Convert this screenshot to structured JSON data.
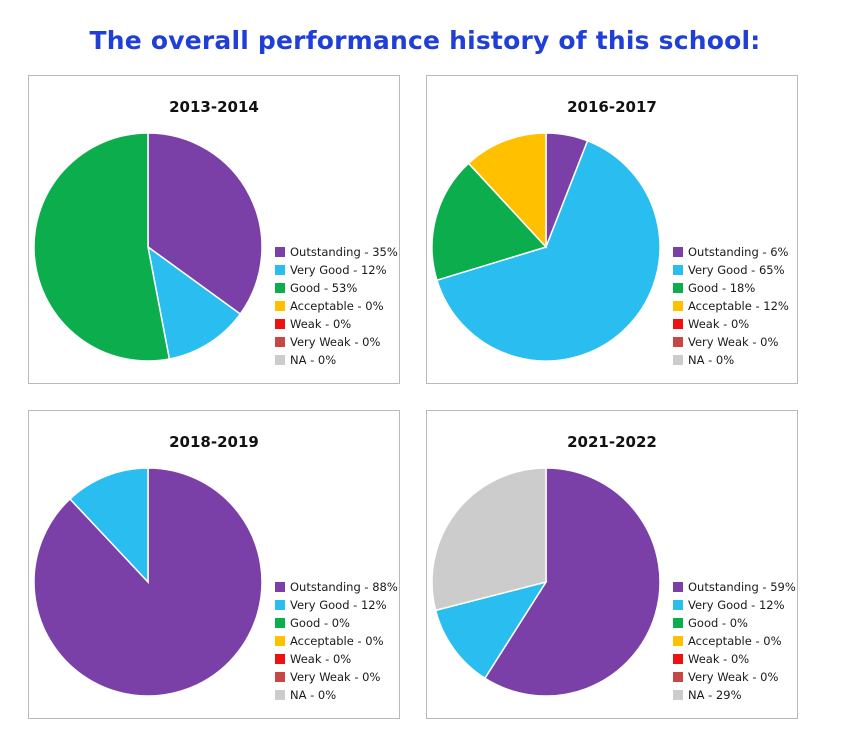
{
  "page_title": "The overall performance history of this school:",
  "colors": {
    "Outstanding": "#7b3fa8",
    "Very Good": "#29bdf0",
    "Good": "#0bad4d",
    "Acceptable": "#ffc000",
    "Weak": "#ee1111",
    "Very Weak": "#c94646",
    "NA": "#cccccc"
  },
  "chart_data": [
    {
      "type": "pie",
      "title": "2013-2014",
      "categories": [
        "Outstanding",
        "Very Good",
        "Good",
        "Acceptable",
        "Weak",
        "Very Weak",
        "NA"
      ],
      "values": [
        35,
        12,
        53,
        0,
        0,
        0,
        0
      ],
      "legend_labels": [
        "Outstanding - 35%",
        "Very Good - 12%",
        "Good - 53%",
        "Acceptable - 0%",
        "Weak - 0%",
        "Very Weak - 0%",
        "NA - 0%"
      ],
      "legend": "right"
    },
    {
      "type": "pie",
      "title": "2016-2017",
      "categories": [
        "Outstanding",
        "Very Good",
        "Good",
        "Acceptable",
        "Weak",
        "Very Weak",
        "NA"
      ],
      "values": [
        6,
        65,
        18,
        12,
        0,
        0,
        0
      ],
      "legend_labels": [
        "Outstanding - 6%",
        "Very Good - 65%",
        "Good - 18%",
        "Acceptable - 12%",
        "Weak - 0%",
        "Very Weak - 0%",
        "NA - 0%"
      ],
      "legend": "right"
    },
    {
      "type": "pie",
      "title": "2018-2019",
      "categories": [
        "Outstanding",
        "Very Good",
        "Good",
        "Acceptable",
        "Weak",
        "Very Weak",
        "NA"
      ],
      "values": [
        88,
        12,
        0,
        0,
        0,
        0,
        0
      ],
      "legend_labels": [
        "Outstanding - 88%",
        "Very Good - 12%",
        "Good - 0%",
        "Acceptable - 0%",
        "Weak - 0%",
        "Very Weak - 0%",
        "NA - 0%"
      ],
      "legend": "right"
    },
    {
      "type": "pie",
      "title": "2021-2022",
      "categories": [
        "Outstanding",
        "Very Good",
        "Good",
        "Acceptable",
        "Weak",
        "Very Weak",
        "NA"
      ],
      "values": [
        59,
        12,
        0,
        0,
        0,
        0,
        29
      ],
      "legend_labels": [
        "Outstanding - 59%",
        "Very Good - 12%",
        "Good - 0%",
        "Acceptable - 0%",
        "Weak - 0%",
        "Very Weak - 0%",
        "NA - 29%"
      ],
      "legend": "right"
    }
  ]
}
